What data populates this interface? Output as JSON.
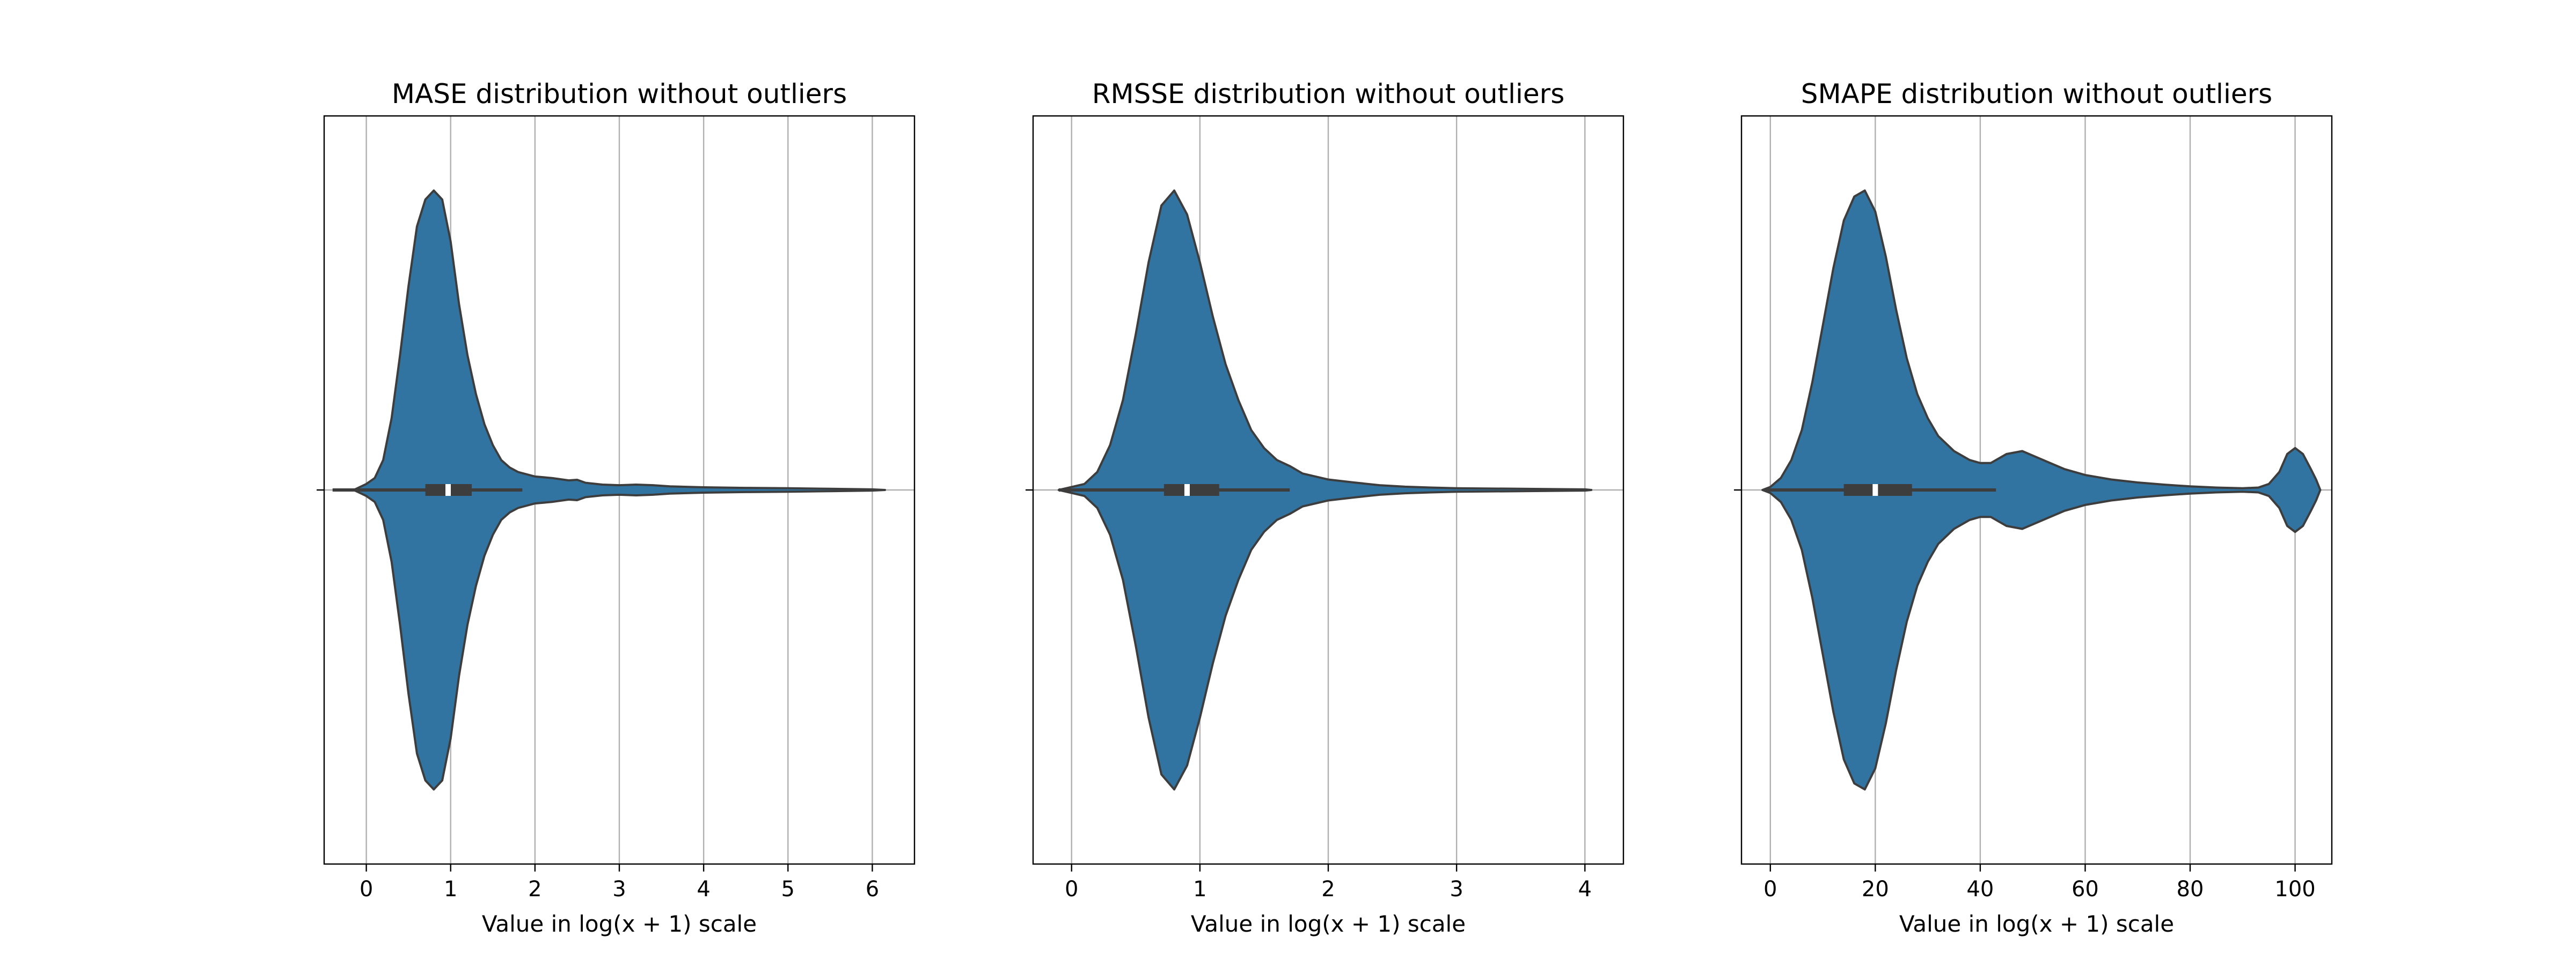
{
  "chart_data": [
    {
      "type": "violin",
      "title": "MASE distribution without outliers",
      "xlabel": "Value in log(x + 1) scale",
      "xlim": [
        -0.5,
        6.5
      ],
      "xticks": [
        0,
        1,
        2,
        3,
        4,
        5,
        6
      ],
      "grid": true,
      "orientation": "horizontal",
      "color": "#3274a1",
      "edge_color": "#3d3d3d",
      "whisker": [
        -0.4,
        1.85
      ],
      "quartiles": [
        0.7,
        1.25
      ],
      "median": 0.97,
      "density": [
        [
          -0.15,
          0.0
        ],
        [
          0.0,
          0.02
        ],
        [
          0.1,
          0.04
        ],
        [
          0.2,
          0.1
        ],
        [
          0.3,
          0.24
        ],
        [
          0.4,
          0.45
        ],
        [
          0.5,
          0.68
        ],
        [
          0.6,
          0.88
        ],
        [
          0.7,
          0.97
        ],
        [
          0.8,
          1.0
        ],
        [
          0.9,
          0.97
        ],
        [
          1.0,
          0.83
        ],
        [
          1.1,
          0.62
        ],
        [
          1.2,
          0.45
        ],
        [
          1.3,
          0.32
        ],
        [
          1.4,
          0.22
        ],
        [
          1.5,
          0.15
        ],
        [
          1.6,
          0.1
        ],
        [
          1.7,
          0.075
        ],
        [
          1.8,
          0.06
        ],
        [
          2.0,
          0.045
        ],
        [
          2.2,
          0.04
        ],
        [
          2.4,
          0.032
        ],
        [
          2.5,
          0.034
        ],
        [
          2.6,
          0.024
        ],
        [
          2.8,
          0.018
        ],
        [
          3.0,
          0.016
        ],
        [
          3.2,
          0.018
        ],
        [
          3.4,
          0.016
        ],
        [
          3.6,
          0.012
        ],
        [
          4.0,
          0.009
        ],
        [
          4.5,
          0.007
        ],
        [
          5.0,
          0.006
        ],
        [
          5.5,
          0.004
        ],
        [
          6.0,
          0.002
        ],
        [
          6.15,
          0.0
        ]
      ]
    },
    {
      "type": "violin",
      "title": "RMSSE distribution without outliers",
      "xlabel": "Value in log(x + 1) scale",
      "xlim": [
        -0.3,
        4.3
      ],
      "xticks": [
        0,
        1,
        2,
        3,
        4
      ],
      "grid": true,
      "orientation": "horizontal",
      "color": "#3274a1",
      "edge_color": "#3d3d3d",
      "whisker": [
        -0.1,
        1.7
      ],
      "quartiles": [
        0.72,
        1.15
      ],
      "median": 0.9,
      "density": [
        [
          -0.1,
          0.0
        ],
        [
          0.0,
          0.01
        ],
        [
          0.1,
          0.02
        ],
        [
          0.2,
          0.06
        ],
        [
          0.3,
          0.15
        ],
        [
          0.4,
          0.3
        ],
        [
          0.5,
          0.52
        ],
        [
          0.6,
          0.76
        ],
        [
          0.7,
          0.95
        ],
        [
          0.8,
          1.0
        ],
        [
          0.9,
          0.92
        ],
        [
          1.0,
          0.76
        ],
        [
          1.1,
          0.58
        ],
        [
          1.2,
          0.42
        ],
        [
          1.3,
          0.3
        ],
        [
          1.4,
          0.2
        ],
        [
          1.5,
          0.14
        ],
        [
          1.6,
          0.1
        ],
        [
          1.7,
          0.08
        ],
        [
          1.8,
          0.055
        ],
        [
          2.0,
          0.035
        ],
        [
          2.2,
          0.025
        ],
        [
          2.4,
          0.016
        ],
        [
          2.6,
          0.011
        ],
        [
          2.8,
          0.008
        ],
        [
          3.0,
          0.006
        ],
        [
          3.5,
          0.004
        ],
        [
          4.0,
          0.002
        ],
        [
          4.05,
          0.0
        ]
      ]
    },
    {
      "type": "violin",
      "title": "SMAPE distribution without outliers",
      "xlabel": "Value in log(x + 1) scale",
      "xlim": [
        -5.5,
        107
      ],
      "xticks": [
        0,
        20,
        40,
        60,
        80,
        100
      ],
      "grid": true,
      "orientation": "horizontal",
      "color": "#3274a1",
      "edge_color": "#3d3d3d",
      "whisker": [
        -1,
        43
      ],
      "quartiles": [
        14,
        27
      ],
      "median": 20,
      "density": [
        [
          -1.5,
          0.0
        ],
        [
          0,
          0.01
        ],
        [
          2,
          0.04
        ],
        [
          4,
          0.1
        ],
        [
          6,
          0.2
        ],
        [
          8,
          0.36
        ],
        [
          10,
          0.55
        ],
        [
          12,
          0.74
        ],
        [
          14,
          0.9
        ],
        [
          16,
          0.98
        ],
        [
          18,
          1.0
        ],
        [
          20,
          0.93
        ],
        [
          22,
          0.78
        ],
        [
          24,
          0.6
        ],
        [
          26,
          0.44
        ],
        [
          28,
          0.32
        ],
        [
          30,
          0.24
        ],
        [
          32,
          0.18
        ],
        [
          35,
          0.13
        ],
        [
          38,
          0.1
        ],
        [
          40,
          0.09
        ],
        [
          42,
          0.09
        ],
        [
          45,
          0.12
        ],
        [
          48,
          0.13
        ],
        [
          52,
          0.1
        ],
        [
          56,
          0.07
        ],
        [
          60,
          0.05
        ],
        [
          65,
          0.035
        ],
        [
          70,
          0.025
        ],
        [
          75,
          0.018
        ],
        [
          80,
          0.012
        ],
        [
          85,
          0.008
        ],
        [
          90,
          0.006
        ],
        [
          93,
          0.008
        ],
        [
          95,
          0.02
        ],
        [
          97,
          0.06
        ],
        [
          98.5,
          0.12
        ],
        [
          100,
          0.14
        ],
        [
          101.5,
          0.12
        ],
        [
          103,
          0.07
        ],
        [
          104,
          0.035
        ],
        [
          104.8,
          0.0
        ]
      ]
    }
  ]
}
